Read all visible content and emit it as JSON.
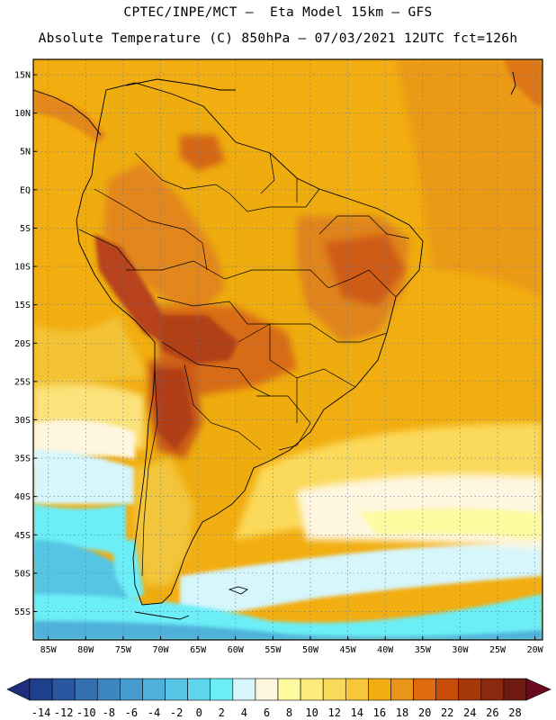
{
  "header": {
    "line1": "CPTEC/INPE/MCT —  Eta Model 15km — GFS",
    "line2": "Absolute Temperature (C) 850hPa — 07/03/2021 12UTC fct=126h"
  },
  "map": {
    "lat_labels": [
      {
        "v": 15,
        "t": "15N"
      },
      {
        "v": 10,
        "t": "10N"
      },
      {
        "v": 5,
        "t": "5N"
      },
      {
        "v": 0,
        "t": "EQ"
      },
      {
        "v": -5,
        "t": "5S"
      },
      {
        "v": -10,
        "t": "10S"
      },
      {
        "v": -15,
        "t": "15S"
      },
      {
        "v": -20,
        "t": "20S"
      },
      {
        "v": -25,
        "t": "25S"
      },
      {
        "v": -30,
        "t": "30S"
      },
      {
        "v": -35,
        "t": "35S"
      },
      {
        "v": -40,
        "t": "40S"
      },
      {
        "v": -45,
        "t": "45S"
      },
      {
        "v": -50,
        "t": "50S"
      },
      {
        "v": -55,
        "t": "55S"
      }
    ],
    "lon_labels": [
      {
        "v": -85,
        "t": "85W"
      },
      {
        "v": -80,
        "t": "80W"
      },
      {
        "v": -75,
        "t": "75W"
      },
      {
        "v": -70,
        "t": "70W"
      },
      {
        "v": -65,
        "t": "65W"
      },
      {
        "v": -60,
        "t": "60W"
      },
      {
        "v": -55,
        "t": "55W"
      },
      {
        "v": -50,
        "t": "50W"
      },
      {
        "v": -45,
        "t": "45W"
      },
      {
        "v": -40,
        "t": "40W"
      },
      {
        "v": -35,
        "t": "35W"
      },
      {
        "v": -30,
        "t": "30W"
      },
      {
        "v": -25,
        "t": "25W"
      },
      {
        "v": -20,
        "t": "20W"
      }
    ],
    "colors": {
      "ocean_warm": "#f2ad10",
      "ocean_mid": "#f3c53a",
      "land_base": "#eeac0e",
      "land_hot": "#e07a12",
      "land_hotter": "#cc5a12",
      "highland": "#b8421a",
      "border": "#000000",
      "grid": "#5a7aa8"
    }
  },
  "colorbar": {
    "labels": [
      "-14",
      "-12",
      "-10",
      "-8",
      "-6",
      "-4",
      "-2",
      "0",
      "2",
      "4",
      "6",
      "8",
      "10",
      "12",
      "14",
      "16",
      "18",
      "20",
      "22",
      "24",
      "26",
      "28"
    ],
    "colors": [
      "#1f3f8c",
      "#2a56a0",
      "#3470b0",
      "#3d86bf",
      "#469ccc",
      "#4fb0d9",
      "#57c4e3",
      "#5fd6ec",
      "#6ceef7",
      "#d6f6fb",
      "#fef6de",
      "#fefaa0",
      "#fdeb7d",
      "#fbd95a",
      "#f7c63a",
      "#f2ad10",
      "#e8961a",
      "#df6a0f",
      "#c84d0a",
      "#a6380a",
      "#8b2810",
      "#6d1a12"
    ],
    "low_arrow_color": "#1d2f7a",
    "high_arrow_color": "#6a0a20"
  }
}
